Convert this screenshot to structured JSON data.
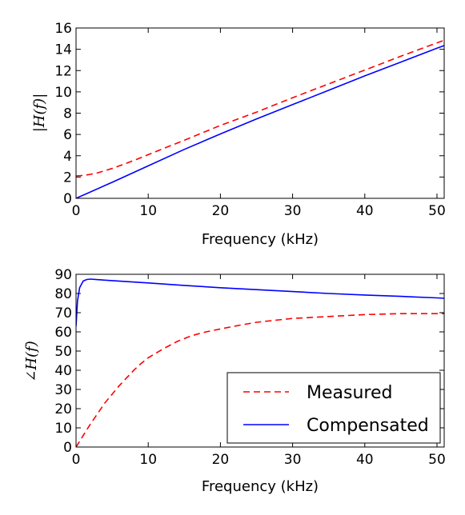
{
  "chart_data": [
    {
      "type": "line",
      "xlabel": "Frequency (kHz)",
      "ylabel": "|H(f)|",
      "xlim": [
        0,
        51
      ],
      "ylim": [
        0,
        16
      ],
      "xticks": [
        0,
        10,
        20,
        30,
        40,
        50
      ],
      "yticks": [
        0,
        2,
        4,
        6,
        8,
        10,
        12,
        14,
        16
      ],
      "grid": false,
      "series": [
        {
          "name": "Measured",
          "style": "dashed",
          "color": "#ff0000",
          "x": [
            0,
            1,
            2,
            3,
            4,
            5,
            6,
            8,
            10,
            12,
            15,
            20,
            25,
            30,
            35,
            40,
            45,
            50,
            51
          ],
          "y": [
            2.1,
            2.15,
            2.25,
            2.4,
            2.6,
            2.8,
            3.05,
            3.55,
            4.1,
            4.65,
            5.45,
            6.85,
            8.1,
            9.45,
            10.75,
            12.05,
            13.35,
            14.6,
            14.85
          ]
        },
        {
          "name": "Compensated",
          "style": "solid",
          "color": "#0000ff",
          "x": [
            0,
            5,
            10,
            15,
            20,
            25,
            30,
            35,
            40,
            45,
            50,
            51
          ],
          "y": [
            0,
            1.5,
            3.05,
            4.6,
            6.05,
            7.45,
            8.8,
            10.15,
            11.5,
            12.8,
            14.1,
            14.35
          ]
        }
      ]
    },
    {
      "type": "line",
      "xlabel": "Frequency (kHz)",
      "ylabel": "∠H(f)",
      "xlim": [
        0,
        51
      ],
      "ylim": [
        0,
        90
      ],
      "xticks": [
        0,
        10,
        20,
        30,
        40,
        50
      ],
      "yticks": [
        0,
        10,
        20,
        30,
        40,
        50,
        60,
        70,
        80,
        90
      ],
      "grid": false,
      "legend": "lower-right",
      "series": [
        {
          "name": "Measured",
          "style": "dashed",
          "color": "#ff0000",
          "x": [
            0,
            1,
            2,
            3,
            4,
            5,
            6,
            7,
            8,
            9,
            10,
            12,
            14,
            16,
            18,
            20,
            22,
            25,
            30,
            35,
            40,
            45,
            51
          ],
          "y": [
            0,
            6,
            12,
            17.5,
            23,
            27.5,
            32,
            36,
            40,
            43.5,
            46.5,
            51,
            55,
            58,
            60,
            61.5,
            63,
            65,
            67,
            68,
            69,
            69.5,
            69.5
          ]
        },
        {
          "name": "Compensated",
          "style": "solid",
          "color": "#0000ff",
          "x": [
            0,
            0.2,
            0.5,
            1,
            1.5,
            2,
            3,
            5,
            10,
            15,
            20,
            25,
            30,
            35,
            40,
            45,
            50,
            51
          ],
          "y": [
            63,
            76,
            83,
            86.5,
            87.3,
            87.5,
            87.2,
            86.7,
            85.5,
            84.2,
            83,
            82,
            81,
            80,
            79.2,
            78.5,
            77.7,
            77.5
          ]
        }
      ]
    }
  ]
}
